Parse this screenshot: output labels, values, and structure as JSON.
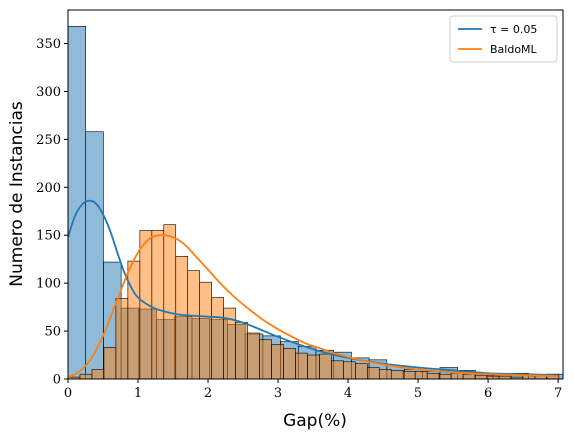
{
  "chart_data": {
    "type": "bar",
    "title": "",
    "xlabel": "Gap(%)",
    "ylabel": "Numero de Instancias",
    "xlim": [
      0,
      7.07
    ],
    "ylim": [
      0,
      385
    ],
    "xticks": [
      "0",
      "1",
      "2",
      "3",
      "4",
      "5",
      "6",
      "7"
    ],
    "yticks": [
      "0",
      "50",
      "100",
      "150",
      "200",
      "250",
      "300",
      "350"
    ],
    "legend_position": "top-right",
    "bin_width_series_1": 0.253,
    "bin_width_series_2": 0.171,
    "series": [
      {
        "name": "τ = 0.05",
        "color": "#1f77b4",
        "bin_starts": [
          0.0,
          0.253,
          0.506,
          0.759,
          1.012,
          1.265,
          1.518,
          1.771,
          2.024,
          2.277,
          2.53,
          2.783,
          3.036,
          3.289,
          3.542,
          3.795,
          4.048,
          4.301,
          4.554,
          4.807,
          5.06,
          5.313,
          5.566,
          5.819,
          6.072,
          6.325,
          6.578,
          6.831
        ],
        "counts": [
          368,
          258,
          122,
          74,
          73,
          62,
          65,
          63,
          62,
          57,
          47,
          45,
          39,
          34,
          30,
          28,
          22,
          20,
          14,
          10,
          8,
          12,
          9,
          4,
          4,
          6,
          3,
          5
        ],
        "kde_x": [
          0.0,
          0.1,
          0.2,
          0.3,
          0.4,
          0.5,
          0.6,
          0.7,
          0.8,
          0.9,
          1.0,
          1.2,
          1.4,
          1.6,
          1.8,
          2.0,
          2.2,
          2.4,
          2.6,
          2.8,
          3.0,
          3.3,
          3.6,
          4.0,
          4.5,
          5.0,
          5.5,
          6.0,
          6.5,
          7.0
        ],
        "kde_y": [
          148,
          170,
          182,
          186,
          183,
          172,
          155,
          133,
          112,
          96,
          85,
          75,
          70,
          67,
          66,
          65,
          64,
          61,
          56,
          50,
          44,
          36,
          29,
          22,
          16,
          12,
          9,
          6,
          5,
          4
        ]
      },
      {
        "name": "BaldoML",
        "color": "#ff7f0e",
        "bin_starts": [
          0.0,
          0.171,
          0.342,
          0.513,
          0.684,
          0.855,
          1.026,
          1.197,
          1.368,
          1.539,
          1.71,
          1.881,
          2.052,
          2.223,
          2.394,
          2.565,
          2.736,
          2.907,
          3.078,
          3.249,
          3.42,
          3.591,
          3.762,
          3.933,
          4.104,
          4.275,
          4.446,
          4.617,
          4.788,
          4.959,
          5.13,
          5.301,
          5.472,
          5.643,
          5.814,
          5.985,
          6.156,
          6.327,
          6.498,
          6.669,
          6.84
        ],
        "counts": [
          2,
          5,
          10,
          33,
          84,
          123,
          155,
          155,
          161,
          128,
          113,
          101,
          85,
          74,
          59,
          48,
          41,
          36,
          32,
          27,
          25,
          26,
          19,
          18,
          16,
          12,
          10,
          9,
          8,
          8,
          6,
          5,
          6,
          5,
          4,
          3,
          3,
          2,
          4,
          3,
          5
        ],
        "kde_x": [
          0.0,
          0.1,
          0.2,
          0.3,
          0.4,
          0.5,
          0.6,
          0.7,
          0.8,
          0.9,
          1.0,
          1.1,
          1.2,
          1.3,
          1.4,
          1.5,
          1.6,
          1.7,
          1.8,
          1.9,
          2.0,
          2.2,
          2.4,
          2.6,
          2.8,
          3.0,
          3.2,
          3.4,
          3.6,
          3.8,
          4.0,
          4.3,
          4.6,
          5.0,
          5.5,
          6.0,
          6.5,
          7.0
        ],
        "kde_y": [
          2,
          5,
          10,
          18,
          30,
          45,
          63,
          82,
          101,
          118,
          132,
          142,
          148,
          150,
          150,
          148,
          144,
          138,
          130,
          122,
          114,
          98,
          84,
          72,
          61,
          52,
          44,
          37,
          32,
          27,
          23,
          18,
          14,
          10,
          7,
          5,
          4,
          3
        ]
      }
    ]
  }
}
